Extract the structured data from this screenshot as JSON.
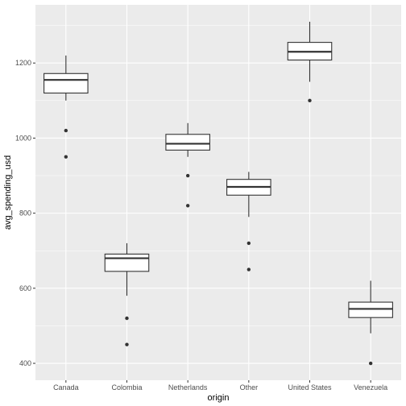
{
  "chart_data": {
    "type": "boxplot",
    "title": "",
    "xlabel": "origin",
    "ylabel": "avg_spending_usd",
    "ylim": [
      355,
      1355
    ],
    "y_ticks": [
      400,
      600,
      800,
      1000,
      1200
    ],
    "grid": true,
    "legend": "none",
    "colors": {
      "panel": "#ebebeb",
      "grid_major": "#ffffff",
      "box_fill": "#ffffff",
      "box_line": "#333333",
      "outlier": "#333333"
    },
    "categories": [
      "Canada",
      "Colombia",
      "Netherlands",
      "Other",
      "United States",
      "Venezuela"
    ],
    "boxes": [
      {
        "category": "Canada",
        "whisker_low": 1100,
        "q1": 1120,
        "median": 1155,
        "q3": 1172,
        "whisker_high": 1220,
        "outliers": [
          1020,
          950
        ]
      },
      {
        "category": "Colombia",
        "whisker_low": 580,
        "q1": 645,
        "median": 680,
        "q3": 691,
        "whisker_high": 720,
        "outliers": [
          520,
          450
        ]
      },
      {
        "category": "Netherlands",
        "whisker_low": 950,
        "q1": 968,
        "median": 985,
        "q3": 1010,
        "whisker_high": 1040,
        "outliers": [
          900,
          820
        ]
      },
      {
        "category": "Other",
        "whisker_low": 790,
        "q1": 848,
        "median": 870,
        "q3": 890,
        "whisker_high": 910,
        "outliers": [
          720,
          650
        ]
      },
      {
        "category": "United States",
        "whisker_low": 1150,
        "q1": 1208,
        "median": 1230,
        "q3": 1255,
        "whisker_high": 1310,
        "outliers": [
          1100
        ]
      },
      {
        "category": "Venezuela",
        "whisker_low": 480,
        "q1": 522,
        "median": 545,
        "q3": 563,
        "whisker_high": 620,
        "outliers": [
          400
        ]
      }
    ]
  }
}
